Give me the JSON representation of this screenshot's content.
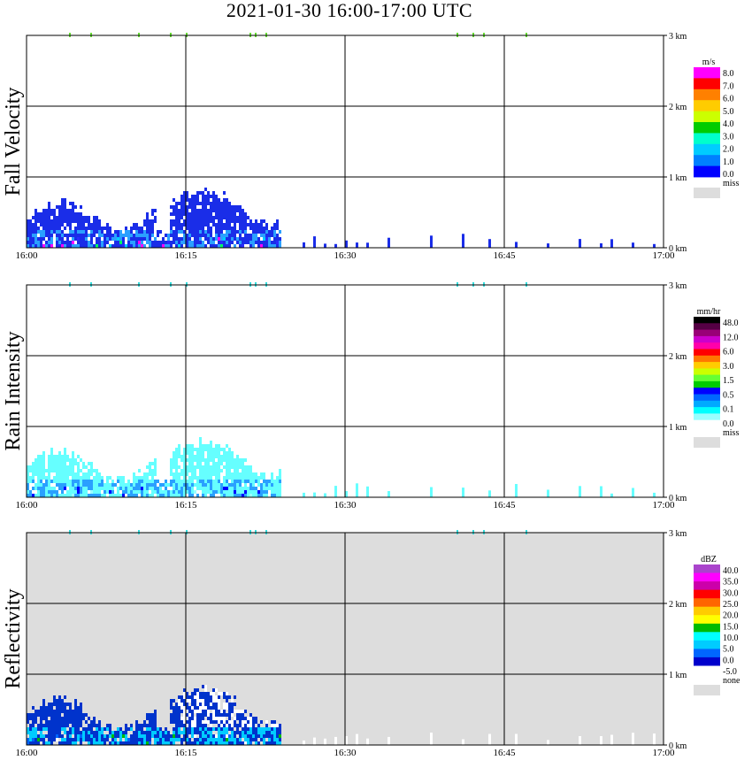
{
  "title": "2021-01-30   16:00-17:00 UTC",
  "chart_data": [
    {
      "type": "heatmap",
      "title": "Fall Velocity",
      "x_ticks": [
        "16:00",
        "16:15",
        "16:30",
        "16:45",
        "17:00"
      ],
      "y_ticks": [
        "3 km",
        "2 km",
        "1 km",
        "0 km"
      ],
      "xlim": [
        "16:00",
        "17:00"
      ],
      "ylim_km": [
        0,
        3
      ],
      "background": "#ffffff",
      "colorbar": {
        "unit": "m/s",
        "labels": [
          "8.0",
          "7.0",
          "6.0",
          "5.0",
          "4.0",
          "3.0",
          "2.0",
          "1.0",
          "0.0",
          "miss"
        ],
        "colors": [
          "#ff00ff",
          "#ff0000",
          "#ff8000",
          "#ffcc00",
          "#ccff00",
          "#00cc00",
          "#00ffcc",
          "#00ccff",
          "#0080ff",
          "#0000ff",
          "#dddddd"
        ]
      },
      "echo": {
        "dominant_color": "#1a2de8",
        "secondary_color": "#2aa0ff",
        "extent_end_min": 24,
        "max_height_km": 0.75
      }
    },
    {
      "type": "heatmap",
      "title": "Rain Intensity",
      "x_ticks": [
        "16:00",
        "16:15",
        "16:30",
        "16:45",
        "17:00"
      ],
      "y_ticks": [
        "3 km",
        "2 km",
        "1 km",
        "0 km"
      ],
      "xlim": [
        "16:00",
        "17:00"
      ],
      "ylim_km": [
        0,
        3
      ],
      "background": "#ffffff",
      "colorbar": {
        "unit": "mm/hr",
        "labels": [
          "48.0",
          "12.0",
          "6.0",
          "3.0",
          "1.5",
          "0.5",
          "0.1",
          "0.0",
          "miss"
        ],
        "colors": [
          "#000000",
          "#550044",
          "#990077",
          "#cc00cc",
          "#ff00aa",
          "#ff0000",
          "#ff7700",
          "#ffcc00",
          "#ccff00",
          "#66ff33",
          "#00cc00",
          "#0000ff",
          "#0066ff",
          "#00aaff",
          "#00ffff",
          "#99ffff",
          "#ffffff",
          "#dddddd"
        ]
      },
      "echo": {
        "dominant_color": "#66ffff",
        "secondary_color": "#2aa0ff",
        "extent_end_min": 24,
        "max_height_km": 0.75
      }
    },
    {
      "type": "heatmap",
      "title": "Reflectivity",
      "x_ticks": [
        "16:00",
        "16:15",
        "16:30",
        "16:45",
        "17:00"
      ],
      "y_ticks": [
        "3 km",
        "2 km",
        "1 km",
        "0 km"
      ],
      "xlim": [
        "16:00",
        "17:00"
      ],
      "ylim_km": [
        0,
        3
      ],
      "background": "#dddddd",
      "colorbar": {
        "unit": "dBZ",
        "labels": [
          "40.0",
          "35.0",
          "30.0",
          "25.0",
          "20.0",
          "15.0",
          "10.0",
          "5.0",
          "0.0",
          "-5.0",
          "none"
        ],
        "colors": [
          "#aa44cc",
          "#ff00ff",
          "#cc00aa",
          "#ff0000",
          "#ff6600",
          "#ffcc00",
          "#ffff00",
          "#00bb00",
          "#00ffff",
          "#00ccff",
          "#0066ff",
          "#0000cc",
          "#ffffff",
          "#dddddd"
        ]
      },
      "echo": {
        "dominant_color": "#0033cc",
        "secondary_color": "#00ccff",
        "extent_end_min": 24,
        "max_height_km": 0.75
      }
    }
  ]
}
